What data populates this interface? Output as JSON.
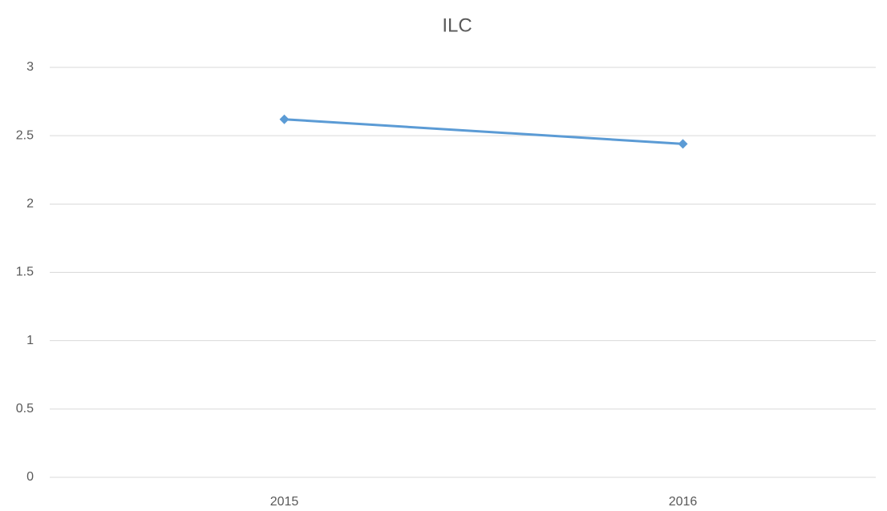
{
  "chart_data": {
    "type": "line",
    "title": "ILC",
    "categories": [
      "2015",
      "2016"
    ],
    "values": [
      2.62,
      2.44
    ],
    "color": "#5b9bd5",
    "ylim": [
      0,
      3
    ],
    "yticks": [
      0,
      0.5,
      1,
      1.5,
      2,
      2.5,
      3
    ],
    "grid": true
  }
}
